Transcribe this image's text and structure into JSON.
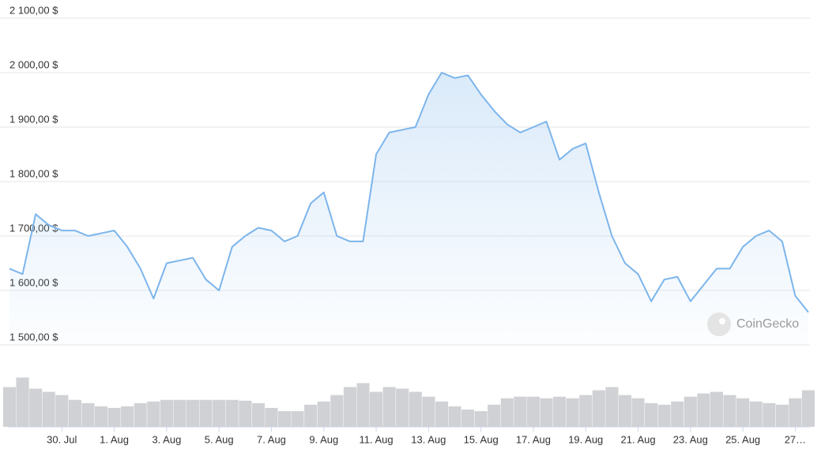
{
  "chart_data": {
    "type": "line",
    "categories": [
      null,
      null,
      null,
      null,
      "30. Jul",
      null,
      null,
      null,
      "1. Aug",
      null,
      null,
      null,
      "3. Aug",
      null,
      null,
      null,
      "5. Aug",
      null,
      null,
      null,
      "7. Aug",
      null,
      null,
      null,
      "9. Aug",
      null,
      null,
      null,
      "11. Aug",
      null,
      null,
      null,
      "13. Aug",
      null,
      null,
      null,
      "15. Aug",
      null,
      null,
      null,
      "17. Aug",
      null,
      null,
      null,
      "19. Aug",
      null,
      null,
      null,
      "21. Aug",
      null,
      null,
      null,
      "23. Aug",
      null,
      null,
      null,
      "25. Aug",
      null,
      null,
      null,
      "27…",
      null
    ],
    "series": [
      {
        "type": "line",
        "color": "#7cb5ec",
        "values": [
          1640,
          1630,
          1740,
          1720,
          1710,
          1710,
          1700,
          1705,
          1710,
          1680,
          1640,
          1585,
          1650,
          1655,
          1660,
          1620,
          1600,
          1680,
          1700,
          1715,
          1710,
          1690,
          1700,
          1760,
          1780,
          1700,
          1690,
          1690,
          1850,
          1890,
          1895,
          1900,
          1960,
          2000,
          1990,
          1995,
          1960,
          1930,
          1905,
          1890,
          1900,
          1910,
          1840,
          1860,
          1870,
          1780,
          1700,
          1650,
          1630,
          1580,
          1620,
          1625,
          1580,
          1610,
          1640,
          1640,
          1680,
          1700,
          1710,
          1690,
          1590,
          1560
        ]
      },
      {
        "type": "bar",
        "axis": "y2",
        "color": "#cfd1d4",
        "values": [
          50,
          62,
          48,
          44,
          40,
          34,
          30,
          26,
          24,
          26,
          30,
          32,
          34,
          34,
          34,
          34,
          34,
          34,
          33,
          30,
          24,
          20,
          20,
          28,
          32,
          40,
          50,
          55,
          44,
          50,
          48,
          44,
          38,
          32,
          26,
          22,
          20,
          28,
          36,
          38,
          38,
          36,
          38,
          36,
          40,
          46,
          50,
          40,
          36,
          30,
          28,
          32,
          38,
          42,
          44,
          40,
          36,
          32,
          30,
          28,
          36,
          46
        ]
      }
    ],
    "ylim": [
      1500,
      2100
    ],
    "yticks": [
      {
        "value": 1500,
        "label": "1 500,00 $"
      },
      {
        "value": 1600,
        "label": "1 600,00 $"
      },
      {
        "value": 1700,
        "label": "1 700,00 $"
      },
      {
        "value": 1800,
        "label": "1 800,00 $"
      },
      {
        "value": 1900,
        "label": "1 900,00 $"
      },
      {
        "value": 2000,
        "label": "2 000,00 $"
      },
      {
        "value": 2100,
        "label": "2 100,00 $"
      }
    ],
    "y2lim": [
      0,
      70
    ],
    "grid": true,
    "watermark": "CoinGecko"
  }
}
